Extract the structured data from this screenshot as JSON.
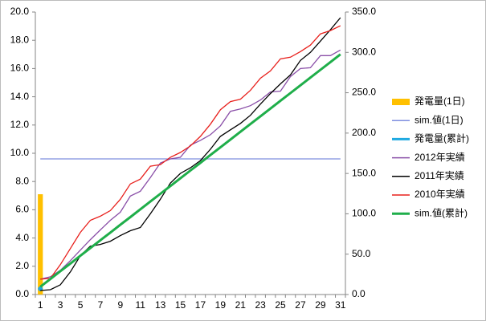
{
  "chart_data": {
    "type": "line",
    "categories": [
      "1",
      null,
      "3",
      null,
      "5",
      null,
      "7",
      null,
      "9",
      null,
      "11",
      null,
      "13",
      null,
      "15",
      null,
      "17",
      null,
      "19",
      null,
      "21",
      null,
      "23",
      null,
      "25",
      null,
      "27",
      null,
      "29",
      null,
      "31"
    ],
    "ylim": [
      0,
      20
    ],
    "yticks": [
      {
        "value": 0,
        "label": "0.0"
      },
      {
        "value": 2,
        "label": "2.0"
      },
      {
        "value": 4,
        "label": "4.0"
      },
      {
        "value": 6,
        "label": "6.0"
      },
      {
        "value": 8,
        "label": "8.0"
      },
      {
        "value": 10,
        "label": "10.0"
      },
      {
        "value": 12,
        "label": "12.0"
      },
      {
        "value": 14,
        "label": "14.0"
      },
      {
        "value": 16,
        "label": "16.0"
      },
      {
        "value": 18,
        "label": "18.0"
      },
      {
        "value": 20,
        "label": "20.0"
      }
    ],
    "y2lim": [
      0,
      350
    ],
    "y2ticks": [
      {
        "value": 0,
        "label": "0.0"
      },
      {
        "value": 50,
        "label": "50.0"
      },
      {
        "value": 100,
        "label": "100.0"
      },
      {
        "value": 150,
        "label": "150.0"
      },
      {
        "value": 200,
        "label": "200.0"
      },
      {
        "value": 250,
        "label": "250.0"
      },
      {
        "value": 300,
        "label": "300.0"
      },
      {
        "value": 350,
        "label": "350.0"
      }
    ],
    "legend": "right",
    "series": [
      {
        "name": "発電量(1日)",
        "type": "bar",
        "color": "#ffc000",
        "values": [
          7.1,
          null,
          null,
          null,
          null,
          null,
          null,
          null,
          null,
          null,
          null,
          null,
          null,
          null,
          null,
          null,
          null,
          null,
          null,
          null,
          null,
          null,
          null,
          null,
          null,
          null,
          null,
          null,
          null,
          null,
          null
        ]
      },
      {
        "name": "sim.値(1日)",
        "type": "line",
        "color": "#7f8fdf",
        "values": [
          9.6,
          9.6,
          9.6,
          9.6,
          9.6,
          9.6,
          9.6,
          9.6,
          9.6,
          9.6,
          9.6,
          9.6,
          9.6,
          9.6,
          9.6,
          9.6,
          9.6,
          9.6,
          9.6,
          9.6,
          9.6,
          9.6,
          9.6,
          9.6,
          9.6,
          9.6,
          9.6,
          9.6,
          9.6,
          9.6,
          9.6
        ]
      },
      {
        "name": "発電量(累計)",
        "type": "line",
        "axis": "y2",
        "color": "#1fa9e1",
        "width": 3,
        "values": [
          7.1,
          null,
          null,
          null,
          null,
          null,
          null,
          null,
          null,
          null,
          null,
          null,
          null,
          null,
          null,
          null,
          null,
          null,
          null,
          null,
          null,
          null,
          null,
          null,
          null,
          null,
          null,
          null,
          null,
          null,
          null
        ]
      },
      {
        "name": "2012年実績",
        "type": "line",
        "axis": "y2",
        "color": "#8a4fa8",
        "values": [
          19,
          22,
          30,
          42,
          55,
          68,
          80,
          92,
          102,
          122,
          128,
          145,
          163,
          168,
          170,
          185,
          191,
          198,
          209,
          227,
          230,
          234,
          241,
          251,
          252,
          270,
          280,
          281,
          296,
          296,
          303
        ]
      },
      {
        "name": "2011年実績",
        "type": "line",
        "axis": "y2",
        "color": "#000000",
        "values": [
          5,
          6,
          12,
          28,
          48,
          60,
          62,
          66,
          73,
          79,
          83,
          100,
          118,
          138,
          150,
          157,
          166,
          180,
          196,
          204,
          212,
          222,
          236,
          249,
          261,
          272,
          290,
          300,
          314,
          328,
          343
        ]
      },
      {
        "name": "2010年実績",
        "type": "line",
        "axis": "y2",
        "color": "#e8201c",
        "values": [
          19,
          20,
          37,
          57,
          77,
          92,
          97,
          104,
          118,
          137,
          143,
          159,
          161,
          170,
          176,
          184,
          196,
          211,
          229,
          239,
          242,
          253,
          268,
          277,
          292,
          294,
          301,
          309,
          323,
          327,
          333
        ]
      },
      {
        "name": "sim.値(累計)",
        "type": "line",
        "axis": "y2",
        "color": "#1fae4a",
        "width": 3,
        "values": [
          9.6,
          19.2,
          28.8,
          38.4,
          48,
          57.6,
          67.2,
          76.8,
          86.4,
          96,
          105.6,
          115.2,
          124.8,
          134.4,
          144,
          153.6,
          163.2,
          172.8,
          182.4,
          192,
          201.6,
          211.2,
          220.8,
          230.4,
          240,
          249.6,
          259.2,
          268.8,
          278.4,
          288,
          297.6
        ]
      }
    ]
  }
}
